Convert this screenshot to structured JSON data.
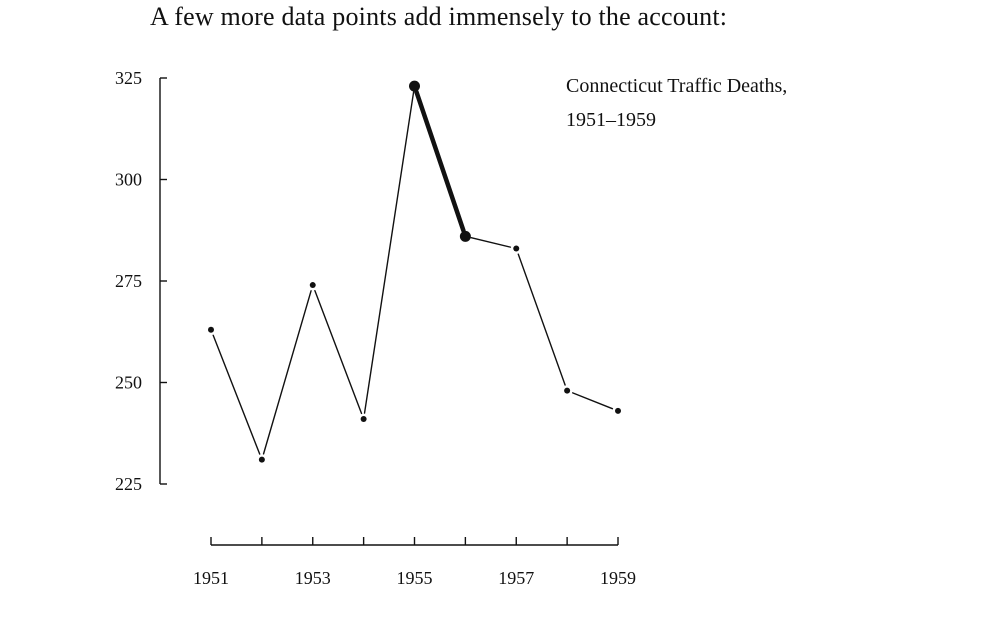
{
  "intro_text": "A few more data points add immensely to the account:",
  "chart_data": {
    "type": "line",
    "title_lines": [
      "Connecticut Traffic Deaths,",
      "1951–1959"
    ],
    "xlabel": "",
    "ylabel": "",
    "x": [
      1951,
      1952,
      1953,
      1954,
      1955,
      1956,
      1957,
      1958,
      1959
    ],
    "values": [
      263,
      231,
      274,
      241,
      323,
      286,
      283,
      248,
      243
    ],
    "x_tick_labels": [
      "1951",
      "1953",
      "1955",
      "1957",
      "1959"
    ],
    "y_ticks": [
      225,
      250,
      275,
      300,
      325
    ],
    "y_tick_labels": [
      "225",
      "250",
      "275",
      "300",
      "325"
    ],
    "ylim": [
      225,
      325
    ],
    "xlim": [
      1951,
      1959
    ],
    "highlight_segment": [
      1955,
      1956
    ],
    "grid": false,
    "line_color": "#111111"
  }
}
